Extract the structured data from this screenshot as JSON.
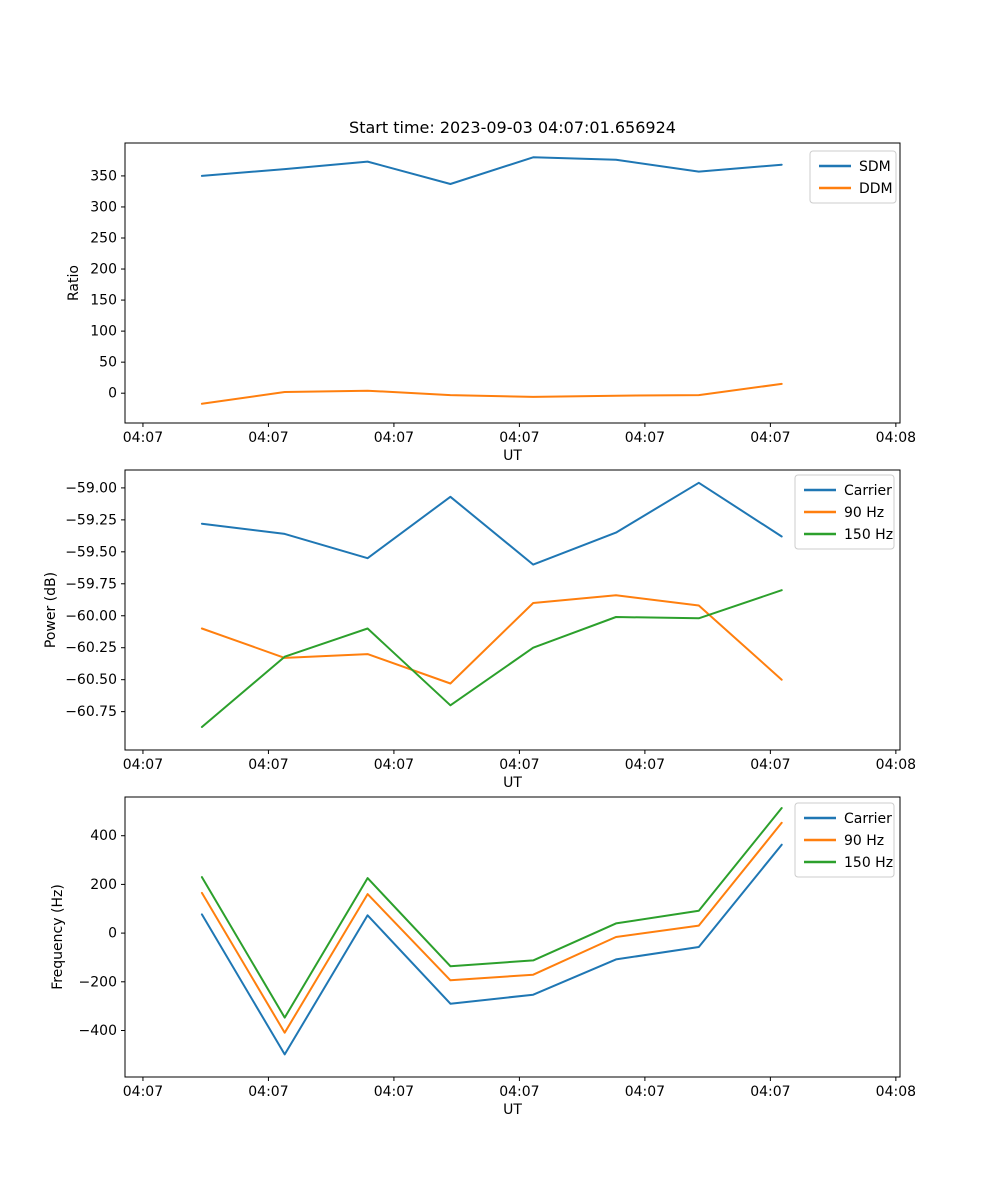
{
  "figure_title": "Start time: 2023-09-03 04:07:01.656924",
  "colors": {
    "blue": "#1f77b4",
    "orange": "#ff7f0e",
    "green": "#2ca02c",
    "spine": "#000000",
    "legend_border": "#cccccc",
    "background": "#ffffff"
  },
  "chart_data": [
    {
      "type": "line",
      "title": "Start time: 2023-09-03 04:07:01.656924",
      "xlabel": "UT",
      "ylabel": "Ratio",
      "legend_position": "upper right",
      "grid": false,
      "x_seconds": [
        4.7,
        11.3,
        17.9,
        24.5,
        31.1,
        37.7,
        44.3,
        50.9
      ],
      "xlim": [
        -1.43,
        60.33
      ],
      "x_tick_seconds": [
        0,
        10,
        20,
        30,
        40,
        50,
        60
      ],
      "x_tick_labels": [
        "04:07",
        "04:07",
        "04:07",
        "04:07",
        "04:07",
        "04:07",
        "04:08"
      ],
      "ylim": [
        -48,
        403
      ],
      "y_ticks": [
        0,
        50,
        100,
        150,
        200,
        250,
        300,
        350
      ],
      "y_tick_labels": [
        "0",
        "50",
        "100",
        "150",
        "200",
        "250",
        "300",
        "350"
      ],
      "series": [
        {
          "name": "SDM",
          "color": "#1f77b4",
          "values": [
            350,
            361,
            373,
            337,
            380,
            376,
            357,
            368
          ]
        },
        {
          "name": "DDM",
          "color": "#ff7f0e",
          "values": [
            -17,
            2,
            4,
            -3,
            -6,
            -4,
            -3,
            15
          ]
        }
      ]
    },
    {
      "type": "line",
      "title": "",
      "xlabel": "UT",
      "ylabel": "Power (dB)",
      "legend_position": "upper right",
      "grid": false,
      "x_seconds": [
        4.7,
        11.3,
        17.9,
        24.5,
        31.1,
        37.7,
        44.3,
        50.9
      ],
      "xlim": [
        -1.43,
        60.33
      ],
      "x_tick_seconds": [
        0,
        10,
        20,
        30,
        40,
        50,
        60
      ],
      "x_tick_labels": [
        "04:07",
        "04:07",
        "04:07",
        "04:07",
        "04:07",
        "04:07",
        "04:08"
      ],
      "ylim": [
        -61.05,
        -58.86
      ],
      "y_ticks": [
        -60.75,
        -60.5,
        -60.25,
        -60.0,
        -59.75,
        -59.5,
        -59.25,
        -59.0
      ],
      "y_tick_labels": [
        "−60.75",
        "−60.50",
        "−60.25",
        "−60.00",
        "−59.75",
        "−59.50",
        "−59.25",
        "−59.00"
      ],
      "series": [
        {
          "name": "Carrier",
          "color": "#1f77b4",
          "values": [
            -59.28,
            -59.36,
            -59.55,
            -59.07,
            -59.6,
            -59.35,
            -58.96,
            -59.38
          ]
        },
        {
          "name": "90 Hz",
          "color": "#ff7f0e",
          "values": [
            -60.1,
            -60.33,
            -60.3,
            -60.53,
            -59.9,
            -59.84,
            -59.92,
            -60.5
          ]
        },
        {
          "name": "150 Hz",
          "color": "#2ca02c",
          "values": [
            -60.87,
            -60.32,
            -60.1,
            -60.7,
            -60.25,
            -60.01,
            -60.02,
            -59.8
          ]
        }
      ]
    },
    {
      "type": "line",
      "title": "",
      "xlabel": "UT",
      "ylabel": "Frequency (Hz)",
      "legend_position": "upper right",
      "grid": false,
      "x_seconds": [
        4.7,
        11.3,
        17.9,
        24.5,
        31.1,
        37.7,
        44.3,
        50.9
      ],
      "xlim": [
        -1.43,
        60.33
      ],
      "x_tick_seconds": [
        0,
        10,
        20,
        30,
        40,
        50,
        60
      ],
      "x_tick_labels": [
        "04:07",
        "04:07",
        "04:07",
        "04:07",
        "04:07",
        "04:07",
        "04:08"
      ],
      "ylim": [
        -591,
        559
      ],
      "y_ticks": [
        -400,
        -200,
        0,
        200,
        400
      ],
      "y_tick_labels": [
        "−400",
        "−200",
        "0",
        "200",
        "400"
      ],
      "series": [
        {
          "name": "Carrier",
          "color": "#1f77b4",
          "values": [
            77,
            -498,
            73,
            -290,
            -253,
            -108,
            -57,
            363
          ]
        },
        {
          "name": "90 Hz",
          "color": "#ff7f0e",
          "values": [
            165,
            -409,
            160,
            -194,
            -171,
            -16,
            31,
            453
          ]
        },
        {
          "name": "150 Hz",
          "color": "#2ca02c",
          "values": [
            230,
            -347,
            226,
            -136,
            -112,
            40,
            92,
            514
          ]
        }
      ]
    }
  ]
}
